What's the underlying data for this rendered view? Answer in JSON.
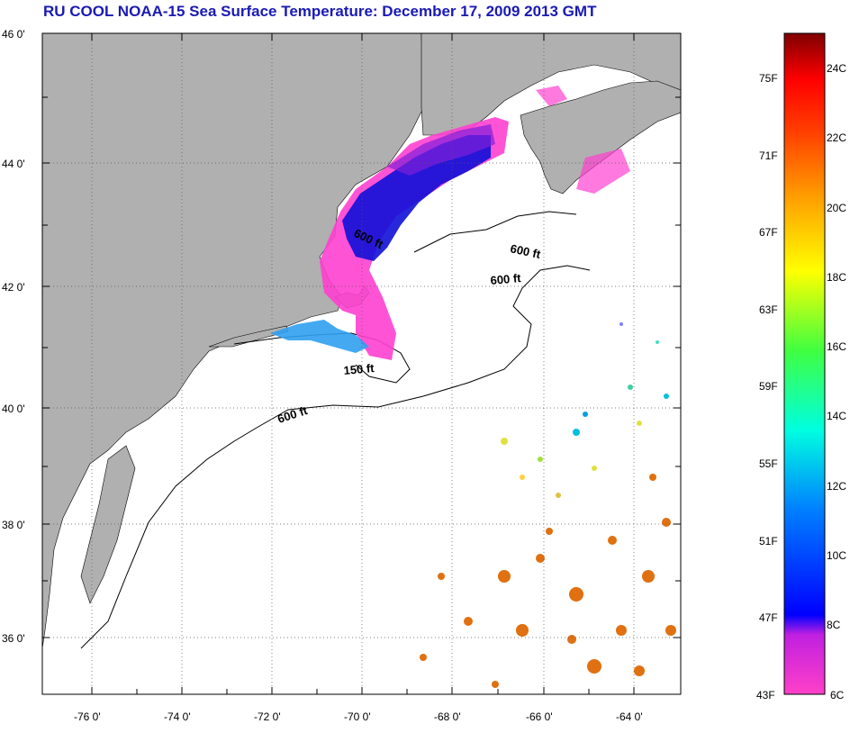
{
  "title": "RU COOL  NOAA-15  Sea Surface Temperature:  December 17, 2009 2013 GMT",
  "map": {
    "lat_ticks": [
      "46 0'",
      "44 0'",
      "42 0'",
      "40 0'",
      "38 0'",
      "36 0'"
    ],
    "lon_ticks": [
      "-76 0'",
      "-74 0'",
      "-72 0'",
      "-70 0'",
      "-68 0'",
      "-66 0'",
      "-64 0'"
    ],
    "contour_labels": [
      "600 ft",
      "600 ft",
      "600 ft",
      "600 ft",
      "150 ft"
    ],
    "colors": {
      "land": "#b0b0b0",
      "water": "#ffffff",
      "cold": "#ff40d0",
      "blue": "#0010e0",
      "cyan": "#00c0e0",
      "yellow": "#e0e040",
      "orange": "#e07010"
    }
  },
  "colorbar": {
    "fahrenheit": [
      "75F",
      "71F",
      "67F",
      "63F",
      "59F",
      "55F",
      "51F",
      "47F",
      "43F"
    ],
    "celsius": [
      "24C",
      "22C",
      "20C",
      "18C",
      "16C",
      "14C",
      "12C",
      "10C",
      "8C",
      "6C"
    ],
    "range_c": [
      6,
      25.5
    ]
  }
}
